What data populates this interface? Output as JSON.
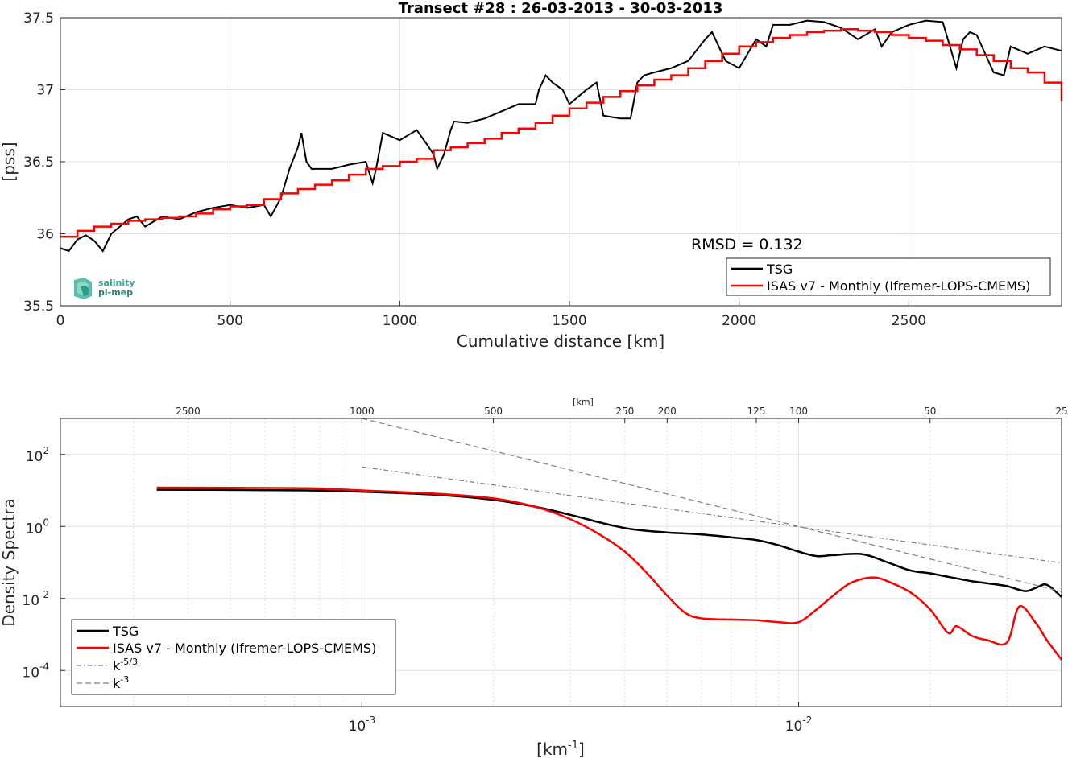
{
  "chart_data": [
    {
      "type": "line",
      "title": "Transect #28 : 26-03-2013 - 30-03-2013",
      "xlabel": "Cumulative distance [km]",
      "ylabel": "[pss]",
      "xlim": [
        0,
        2950
      ],
      "ylim": [
        35.5,
        37.5
      ],
      "xticks": [
        "0",
        "500",
        "1000",
        "1500",
        "2000",
        "2500"
      ],
      "yticks": [
        "35.5",
        "36",
        "36.5",
        "37",
        "37.5"
      ],
      "grid": true,
      "annotation": "RMSD = 0.132",
      "logo": {
        "line1": "salinity",
        "line2": "pi-mep"
      },
      "legend_position": "bottom-right",
      "series": [
        {
          "name": "TSG",
          "color": "#000000",
          "x": [
            0,
            25,
            50,
            75,
            100,
            125,
            150,
            175,
            200,
            225,
            250,
            300,
            350,
            400,
            450,
            500,
            550,
            600,
            620,
            650,
            675,
            700,
            710,
            725,
            740,
            760,
            800,
            850,
            900,
            920,
            930,
            950,
            1000,
            1050,
            1080,
            1100,
            1110,
            1130,
            1150,
            1160,
            1200,
            1250,
            1300,
            1350,
            1400,
            1410,
            1430,
            1450,
            1480,
            1500,
            1550,
            1580,
            1600,
            1650,
            1680,
            1700,
            1720,
            1750,
            1800,
            1850,
            1900,
            1920,
            1960,
            2000,
            2050,
            2080,
            2100,
            2150,
            2200,
            2250,
            2300,
            2350,
            2400,
            2420,
            2450,
            2500,
            2550,
            2600,
            2640,
            2660,
            2680,
            2700,
            2750,
            2780,
            2800,
            2850,
            2900,
            2950
          ],
          "y": [
            35.9,
            35.88,
            35.96,
            35.99,
            35.95,
            35.88,
            36.0,
            36.05,
            36.1,
            36.12,
            36.05,
            36.12,
            36.1,
            36.15,
            36.18,
            36.2,
            36.18,
            36.2,
            36.12,
            36.25,
            36.45,
            36.6,
            36.7,
            36.5,
            36.45,
            36.45,
            36.45,
            36.48,
            36.5,
            36.35,
            36.45,
            36.7,
            36.65,
            36.72,
            36.62,
            36.55,
            36.45,
            36.55,
            36.72,
            36.78,
            36.77,
            36.8,
            36.85,
            36.9,
            36.9,
            37.0,
            37.1,
            37.05,
            37.0,
            36.9,
            37.0,
            37.05,
            36.82,
            36.8,
            36.8,
            37.05,
            37.1,
            37.12,
            37.15,
            37.2,
            37.35,
            37.4,
            37.2,
            37.15,
            37.35,
            37.3,
            37.45,
            37.45,
            37.48,
            37.47,
            37.43,
            37.35,
            37.42,
            37.3,
            37.4,
            37.45,
            37.48,
            37.47,
            37.15,
            37.35,
            37.4,
            37.38,
            37.12,
            37.1,
            37.3,
            37.25,
            37.3,
            37.27
          ]
        },
        {
          "name": "ISAS v7 - Monthly (Ifremer-LOPS-CMEMS)",
          "color": "#ff0000",
          "x": [
            0,
            50,
            100,
            150,
            200,
            250,
            300,
            350,
            400,
            450,
            500,
            550,
            600,
            650,
            700,
            750,
            800,
            850,
            900,
            950,
            1000,
            1050,
            1100,
            1150,
            1200,
            1250,
            1300,
            1350,
            1400,
            1450,
            1500,
            1550,
            1600,
            1650,
            1700,
            1750,
            1800,
            1850,
            1900,
            1950,
            2000,
            2050,
            2100,
            2150,
            2200,
            2250,
            2300,
            2350,
            2400,
            2450,
            2500,
            2550,
            2600,
            2650,
            2700,
            2750,
            2800,
            2850,
            2900,
            2950
          ],
          "y": [
            35.98,
            36.02,
            36.05,
            36.07,
            36.09,
            36.1,
            36.11,
            36.12,
            36.14,
            36.17,
            36.19,
            36.2,
            36.24,
            36.28,
            36.31,
            36.34,
            36.37,
            36.41,
            36.45,
            36.47,
            36.5,
            36.52,
            36.58,
            36.6,
            36.63,
            36.66,
            36.7,
            36.73,
            36.77,
            36.82,
            36.87,
            36.91,
            36.95,
            36.99,
            37.03,
            37.07,
            37.1,
            37.15,
            37.2,
            37.25,
            37.3,
            37.33,
            37.36,
            37.38,
            37.4,
            37.41,
            37.42,
            37.41,
            37.4,
            37.38,
            37.36,
            37.34,
            37.31,
            37.28,
            37.24,
            37.2,
            37.15,
            37.12,
            37.05,
            36.92
          ]
        }
      ]
    },
    {
      "type": "line",
      "title": "",
      "xlabel": "[km-1]",
      "xlabel_base": "[km",
      "xlabel_exp": "-1",
      "xlabel_end": "]",
      "ylabel": "Density Spectra",
      "xscale": "log",
      "yscale": "log",
      "xlim": [
        0.000204,
        0.04
      ],
      "ylim": [
        1e-05,
        1000
      ],
      "xticks": [
        {
          "base": "10",
          "exp": "-3"
        },
        {
          "base": "10",
          "exp": "-2"
        }
      ],
      "yticks": [
        {
          "base": "10",
          "exp": "-4"
        },
        {
          "base": "10",
          "exp": "-2"
        },
        {
          "base": "10",
          "exp": "0"
        },
        {
          "base": "10",
          "exp": "2"
        }
      ],
      "top_axis_label": "[km]",
      "top_axis_ticks": [
        "2500",
        "1000",
        "500",
        "250",
        "200",
        "125",
        "100",
        "50",
        "25"
      ],
      "top_axis_values": [
        2500,
        1000,
        500,
        250,
        200,
        125,
        100,
        50,
        25
      ],
      "grid": true,
      "legend_position": "bottom-left",
      "series": [
        {
          "name": "TSG",
          "color": "#000000",
          "style": "solid",
          "x": [
            0.000339,
            0.0005,
            0.00075,
            0.001,
            0.0015,
            0.002,
            0.0025,
            0.003,
            0.0035,
            0.004,
            0.0045,
            0.005,
            0.006,
            0.007,
            0.008,
            0.009,
            0.01,
            0.011,
            0.012,
            0.014,
            0.016,
            0.018,
            0.02,
            0.022,
            0.025,
            0.028,
            0.03,
            0.033,
            0.035,
            0.037,
            0.04
          ],
          "y": [
            10.5,
            10.3,
            10,
            9.2,
            7.5,
            5.5,
            3.5,
            2.1,
            1.3,
            0.9,
            0.75,
            0.68,
            0.6,
            0.5,
            0.42,
            0.3,
            0.2,
            0.15,
            0.16,
            0.17,
            0.1,
            0.06,
            0.05,
            0.04,
            0.03,
            0.025,
            0.022,
            0.016,
            0.02,
            0.024,
            0.011
          ]
        },
        {
          "name": "ISAS v7 - Monthly (Ifremer-LOPS-CMEMS)",
          "color": "#ff0000",
          "style": "solid",
          "x": [
            0.000339,
            0.0005,
            0.00075,
            0.001,
            0.0015,
            0.002,
            0.0025,
            0.003,
            0.0035,
            0.004,
            0.0045,
            0.005,
            0.0055,
            0.006,
            0.007,
            0.008,
            0.009,
            0.01,
            0.011,
            0.012,
            0.013,
            0.014,
            0.015,
            0.016,
            0.018,
            0.02,
            0.022,
            0.023,
            0.025,
            0.027,
            0.03,
            0.032,
            0.035,
            0.037,
            0.04
          ],
          "y": [
            12,
            11.8,
            11.5,
            10,
            8,
            6,
            3.5,
            1.6,
            0.6,
            0.2,
            0.05,
            0.012,
            0.004,
            0.0028,
            0.0026,
            0.0025,
            0.0022,
            0.0022,
            0.005,
            0.012,
            0.025,
            0.035,
            0.038,
            0.03,
            0.015,
            0.005,
            0.0011,
            0.0017,
            0.0009,
            0.0007,
            0.0006,
            0.006,
            0.002,
            0.0007,
            0.0002
          ]
        },
        {
          "name": "k^-5/3",
          "label_base": "k",
          "label_exp": "-5/3",
          "color": "#808080",
          "style": "dashdot",
          "x": [
            0.001,
            0.04
          ],
          "y": [
            45,
            0.097
          ]
        },
        {
          "name": "k^-3",
          "label_base": "k",
          "label_exp": "-3",
          "color": "#808080",
          "style": "dashed",
          "x": [
            0.001,
            0.04
          ],
          "y": [
            1000,
            0.0156
          ]
        }
      ]
    }
  ]
}
